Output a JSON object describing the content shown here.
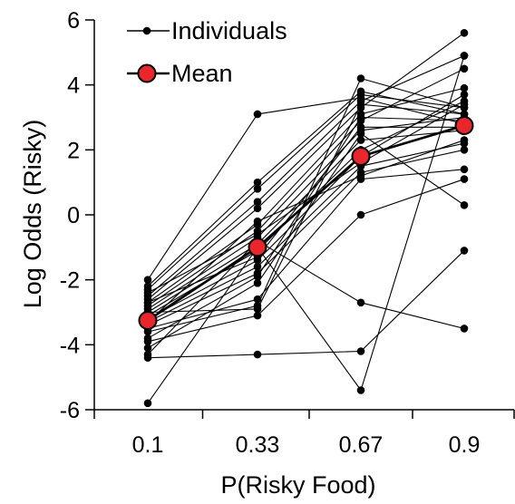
{
  "chart_data": {
    "type": "line",
    "xlabel": "P(Risky Food)",
    "ylabel": "Log Odds (Risky)",
    "categories": [
      "0.1",
      "0.33",
      "0.67",
      "0.9"
    ],
    "ylim": [
      -6,
      6
    ],
    "yticks": [
      -6,
      -4,
      -2,
      0,
      2,
      4,
      6
    ],
    "legend": {
      "position": "top-left",
      "entries": [
        {
          "label": "Individuals",
          "marker": "small-black-dot"
        },
        {
          "label": "Mean",
          "marker": "large-red-circle"
        }
      ]
    },
    "colors": {
      "individual": "#000000",
      "mean_fill": "#e8262b",
      "mean_edge": "#000000"
    },
    "series": [
      {
        "values": [
          -2.0,
          3.1,
          3.6,
          2.8
        ]
      },
      {
        "values": [
          -2.2,
          1.0,
          3.8,
          3.1
        ]
      },
      {
        "values": [
          -2.3,
          0.8,
          3.7,
          3.3
        ]
      },
      {
        "values": [
          -2.5,
          0.4,
          3.5,
          4.9
        ]
      },
      {
        "values": [
          -2.6,
          0.2,
          3.3,
          5.6
        ]
      },
      {
        "values": [
          -2.7,
          -0.3,
          3.1,
          3.9
        ]
      },
      {
        "values": [
          -2.8,
          -0.5,
          2.9,
          4.5
        ]
      },
      {
        "values": [
          -2.9,
          -0.7,
          2.6,
          3.0
        ]
      },
      {
        "values": [
          -3.0,
          -0.9,
          2.3,
          2.6
        ]
      },
      {
        "values": [
          -3.1,
          -1.1,
          2.0,
          3.5
        ]
      },
      {
        "values": [
          -3.2,
          -1.4,
          1.8,
          3.7
        ]
      },
      {
        "values": [
          -3.3,
          -1.6,
          1.5,
          2.2
        ]
      },
      {
        "values": [
          -3.4,
          -1.8,
          1.3,
          2.0
        ]
      },
      {
        "values": [
          -3.5,
          -2.6,
          1.1,
          1.4
        ]
      },
      {
        "values": [
          -3.6,
          -2.8,
          4.2,
          3.3
        ]
      },
      {
        "values": [
          -3.9,
          -3.1,
          0.0,
          1.1
        ]
      },
      {
        "values": [
          -4.1,
          -2.1,
          2.5,
          0.3
        ]
      },
      {
        "values": [
          -4.3,
          -0.8,
          -2.7,
          -3.5
        ]
      },
      {
        "values": [
          -4.4,
          -4.3,
          -4.2,
          -1.1
        ]
      },
      {
        "values": [
          -5.8,
          -1.0,
          -5.4,
          4.9
        ]
      },
      {
        "values": [
          -3.8,
          -1.9,
          3.0,
          2.9
        ]
      },
      {
        "values": [
          -3.0,
          -2.9,
          3.4,
          3.1
        ]
      },
      {
        "values": [
          -2.7,
          -1.3,
          2.7,
          2.7
        ]
      },
      {
        "values": [
          -2.4,
          -0.6,
          1.6,
          3.4
        ]
      },
      {
        "values": [
          -3.3,
          -0.2,
          1.2,
          2.3
        ]
      }
    ],
    "mean": {
      "name": "Mean",
      "values": [
        -3.25,
        -1.0,
        1.8,
        2.75
      ]
    }
  }
}
